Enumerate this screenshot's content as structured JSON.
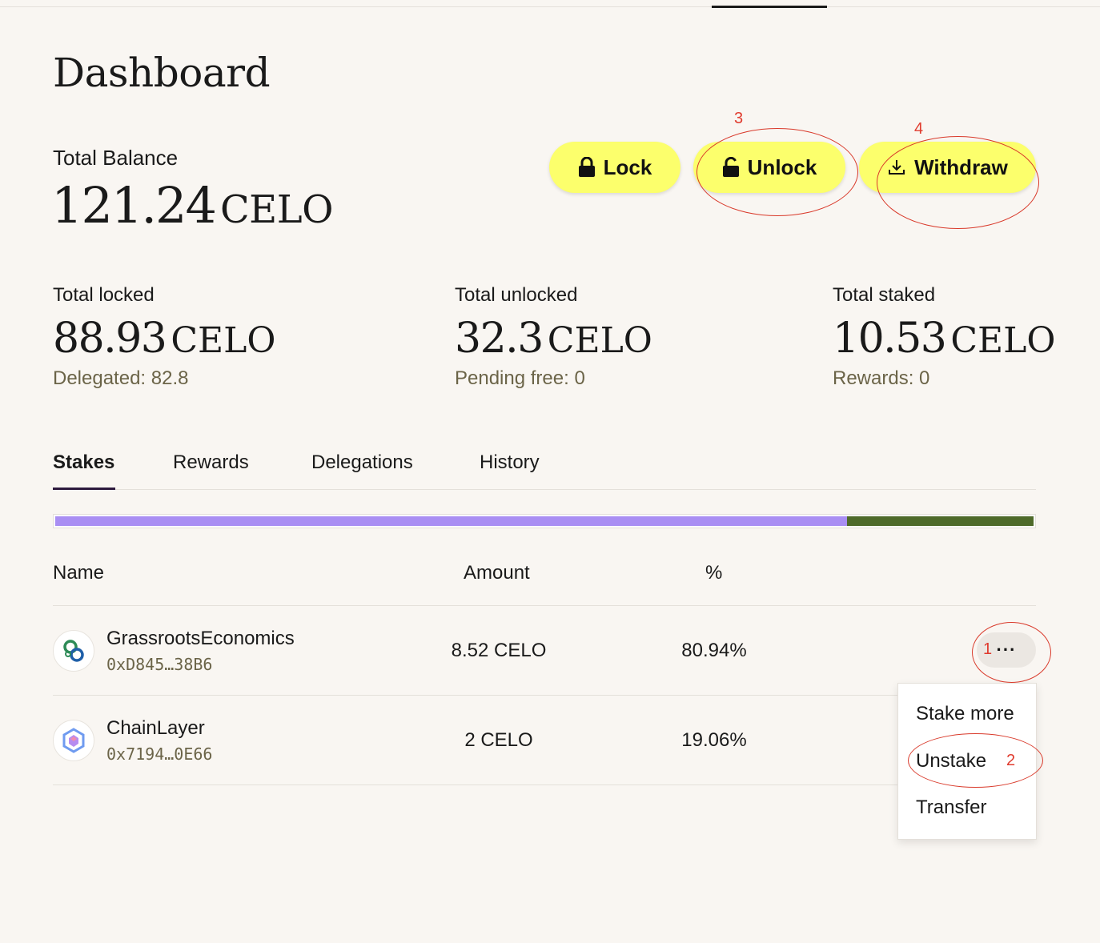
{
  "page": {
    "title": "Dashboard"
  },
  "balance": {
    "label": "Total Balance",
    "value": "121.24",
    "unit": "CELO"
  },
  "actions": {
    "lock": "Lock",
    "unlock": "Unlock",
    "withdraw": "Withdraw"
  },
  "stats": [
    {
      "label": "Total locked",
      "value": "88.93",
      "unit": "CELO",
      "sub": "Delegated: 82.8"
    },
    {
      "label": "Total unlocked",
      "value": "32.3",
      "unit": "CELO",
      "sub": "Pending free: 0"
    },
    {
      "label": "Total staked",
      "value": "10.53",
      "unit": "CELO",
      "sub": "Rewards: 0"
    }
  ],
  "tabs": [
    "Stakes",
    "Rewards",
    "Delegations",
    "History"
  ],
  "active_tab": "Stakes",
  "distribution": [
    {
      "share": 80.94,
      "color": "#a98ef3"
    },
    {
      "share": 19.06,
      "color": "#4e6a2a"
    }
  ],
  "table": {
    "headers": {
      "name": "Name",
      "amount": "Amount",
      "percent": "%"
    },
    "rows": [
      {
        "name": "GrassrootsEconomics",
        "address": "0xD845…38B6",
        "amount": "8.52 CELO",
        "percent": "80.94%",
        "icon": "grassroots-logo-icon"
      },
      {
        "name": "ChainLayer",
        "address": "0x7194…0E66",
        "amount": "2 CELO",
        "percent": "19.06%",
        "icon": "chainlayer-logo-icon"
      }
    ]
  },
  "more_button": {
    "label": "···"
  },
  "menu": {
    "items": [
      "Stake more",
      "Unstake",
      "Transfer"
    ]
  },
  "annotations": {
    "one": "1",
    "two": "2",
    "three": "3",
    "four": "4"
  },
  "colors": {
    "button": "#fcff6c",
    "annotation": "#d93a2b",
    "background": "#f9f6f2"
  }
}
